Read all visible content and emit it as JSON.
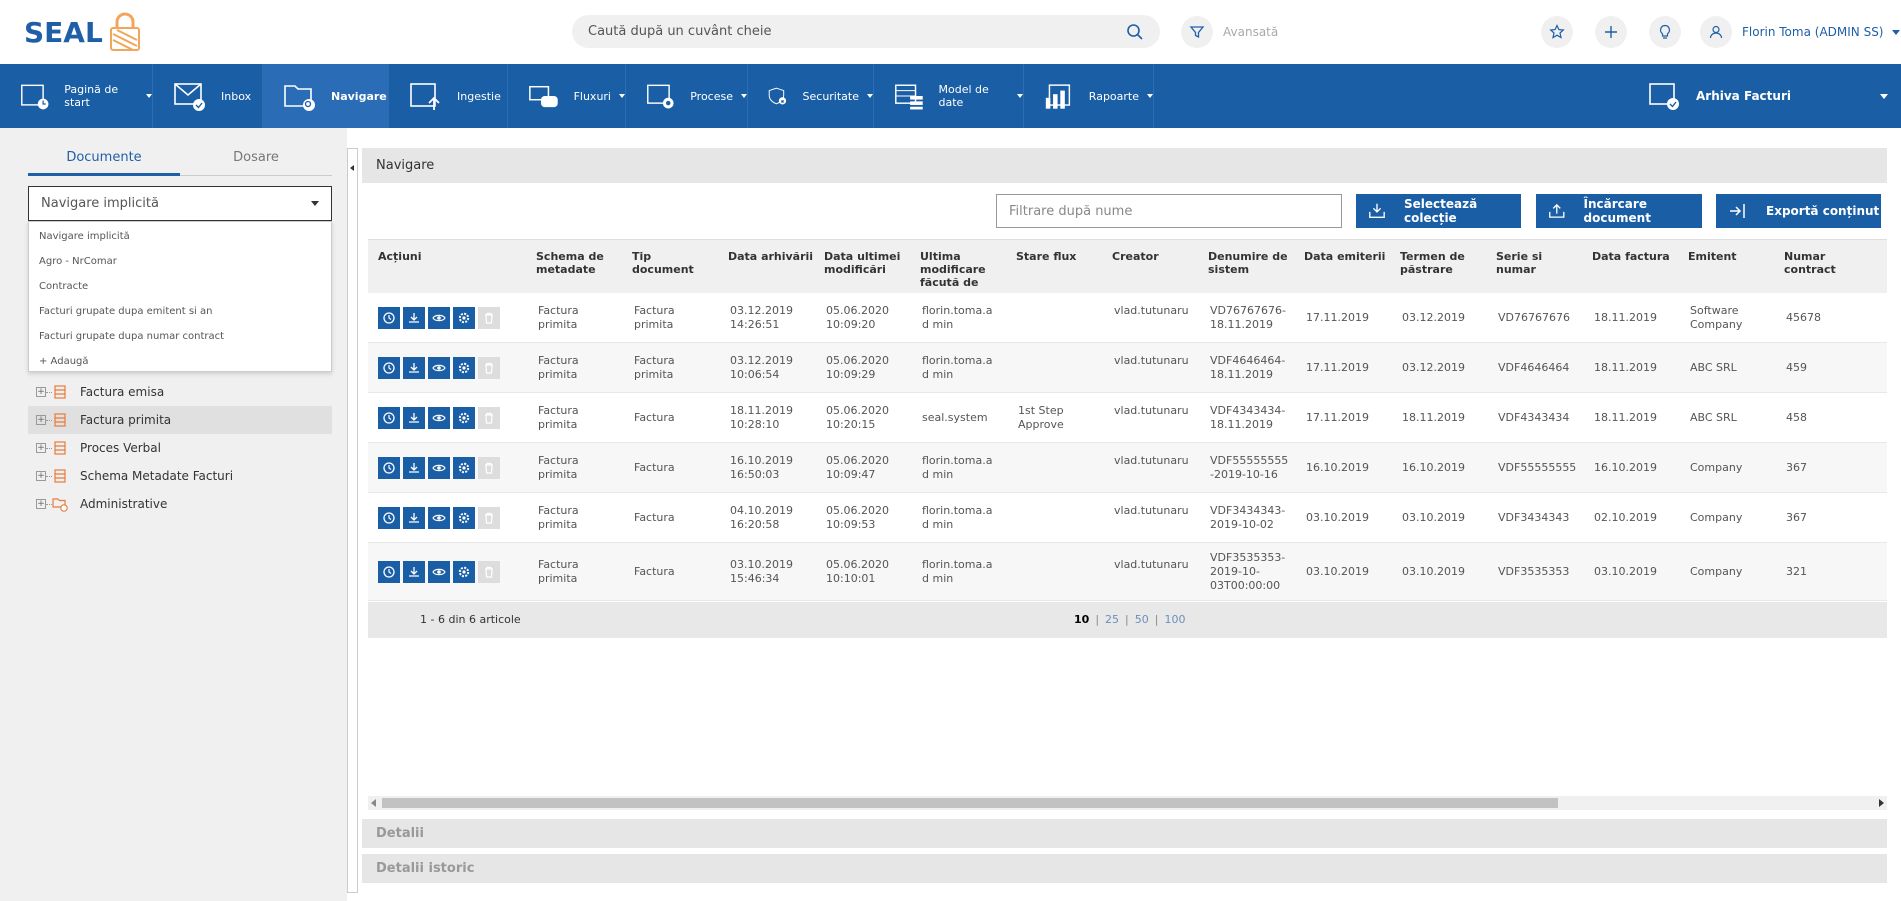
{
  "brand": {
    "name": "SEAL",
    "color": "#1f5fa8",
    "accent": "#f2a65a"
  },
  "search": {
    "placeholder": "Caută după un cuvânt cheie",
    "icon": "search-icon"
  },
  "advanced": {
    "label": "Avansată",
    "icon": "filter-icon"
  },
  "header_icons": [
    "star-icon",
    "plus-icon",
    "lightbulb-icon"
  ],
  "user": {
    "name": "Florin Toma (ADMIN SS)",
    "icon": "user-icon"
  },
  "nav": {
    "items": [
      {
        "label": "Pagină de start",
        "icon": "home-page-icon",
        "caret": true
      },
      {
        "label": "Inbox",
        "icon": "inbox-icon",
        "caret": false
      },
      {
        "label": "Navigare",
        "icon": "navigation-icon",
        "caret": false,
        "active": true
      },
      {
        "label": "Ingestie",
        "icon": "upload-icon",
        "caret": false
      },
      {
        "label": "Fluxuri",
        "icon": "workflow-icon",
        "caret": true
      },
      {
        "label": "Procese",
        "icon": "process-icon",
        "caret": true
      },
      {
        "label": "Securitate",
        "icon": "security-icon",
        "caret": true
      },
      {
        "label": "Model de date",
        "icon": "data-model-icon",
        "caret": true
      },
      {
        "label": "Rapoarte",
        "icon": "reports-icon",
        "caret": true
      }
    ],
    "archive": {
      "label": "Arhiva Facturi",
      "icon": "archive-icon"
    },
    "bg_color": "#1a5ea6"
  },
  "left": {
    "tabs": [
      {
        "label": "Documente",
        "active": true
      },
      {
        "label": "Dosare",
        "active": false
      }
    ],
    "dropdown": {
      "selected": "Navigare implicită",
      "options": [
        "Navigare implicită",
        "Agro - NrComar",
        "Contracte",
        "Facturi grupate dupa emitent si an",
        "Facturi grupate dupa numar contract",
        "+ Adaugă"
      ]
    },
    "tree": [
      {
        "label": "Factura emisa",
        "icon": "doc-type-icon",
        "selected": false
      },
      {
        "label": "Factura primita",
        "icon": "doc-type-icon",
        "selected": true
      },
      {
        "label": "Proces Verbal",
        "icon": "doc-type-icon",
        "selected": false
      },
      {
        "label": "Schema Metadate Facturi",
        "icon": "doc-type-icon",
        "selected": false
      },
      {
        "label": "Administrative",
        "icon": "folder-clock-icon",
        "selected": false
      }
    ]
  },
  "main": {
    "title": "Navigare",
    "filter_placeholder": "Filtrare după nume",
    "buttons": {
      "select": "Selectează colecție",
      "upload": "Încărcare document",
      "export": "Exportă conținut"
    },
    "columns": [
      "Acțiuni",
      "Schema de metadate",
      "Tip document",
      "Data arhivării",
      "Data ultimei modificări",
      "Ultima modificare făcută de",
      "Stare flux",
      "Creator",
      "Denumire de sistem",
      "Data emiterii",
      "Termen de păstrare",
      "Serie si numar",
      "Data factura",
      "Emitent",
      "Numar contract"
    ],
    "action_icons": [
      "history-icon",
      "download-icon",
      "view-icon",
      "settings-icon",
      "delete-icon"
    ],
    "rows": [
      [
        "Factura primita",
        "Factura primita",
        "03.12.2019 14:26:51",
        "05.06.2020 10:09:20",
        "florin.toma.ad min",
        "",
        "vlad.tutunaru",
        "VD76767676-18.11.2019",
        "17.11.2019",
        "03.12.2019",
        "VD76767676",
        "18.11.2019",
        "Software Company",
        "45678"
      ],
      [
        "Factura primita",
        "Factura primita",
        "03.12.2019 10:06:54",
        "05.06.2020 10:09:29",
        "florin.toma.ad min",
        "",
        "vlad.tutunaru",
        "VDF4646464-18.11.2019",
        "17.11.2019",
        "03.12.2019",
        "VDF4646464",
        "18.11.2019",
        "ABC SRL",
        "459"
      ],
      [
        "Factura primita",
        "Factura",
        "18.11.2019 10:28:10",
        "05.06.2020 10:20:15",
        "seal.system",
        "1st Step Approve",
        "vlad.tutunaru",
        "VDF4343434-18.11.2019",
        "17.11.2019",
        "18.11.2019",
        "VDF4343434",
        "18.11.2019",
        "ABC SRL",
        "458"
      ],
      [
        "Factura primita",
        "Factura",
        "16.10.2019 16:50:03",
        "05.06.2020 10:09:47",
        "florin.toma.ad min",
        "",
        "vlad.tutunaru",
        "VDF55555555 -2019-10-16",
        "16.10.2019",
        "16.10.2019",
        "VDF55555555",
        "16.10.2019",
        "Company",
        "367"
      ],
      [
        "Factura primita",
        "Factura",
        "04.10.2019 16:20:58",
        "05.06.2020 10:09:53",
        "florin.toma.ad min",
        "",
        "vlad.tutunaru",
        "VDF3434343-2019-10-02",
        "03.10.2019",
        "03.10.2019",
        "VDF3434343",
        "02.10.2019",
        "Company",
        "367"
      ],
      [
        "Factura primita",
        "Factura",
        "03.10.2019 15:46:34",
        "05.06.2020 10:10:01",
        "florin.toma.ad min",
        "",
        "vlad.tutunaru",
        "VDF3535353-2019-10-03T00:00:00",
        "03.10.2019",
        "03.10.2019",
        "VDF3535353",
        "03.10.2019",
        "Company",
        "321"
      ]
    ],
    "pager": {
      "summary": "1 - 6 din 6 articole",
      "sizes": [
        "10",
        "25",
        "50",
        "100"
      ],
      "current": "10"
    },
    "sections": [
      "Detalii",
      "Detalii istoric"
    ]
  }
}
